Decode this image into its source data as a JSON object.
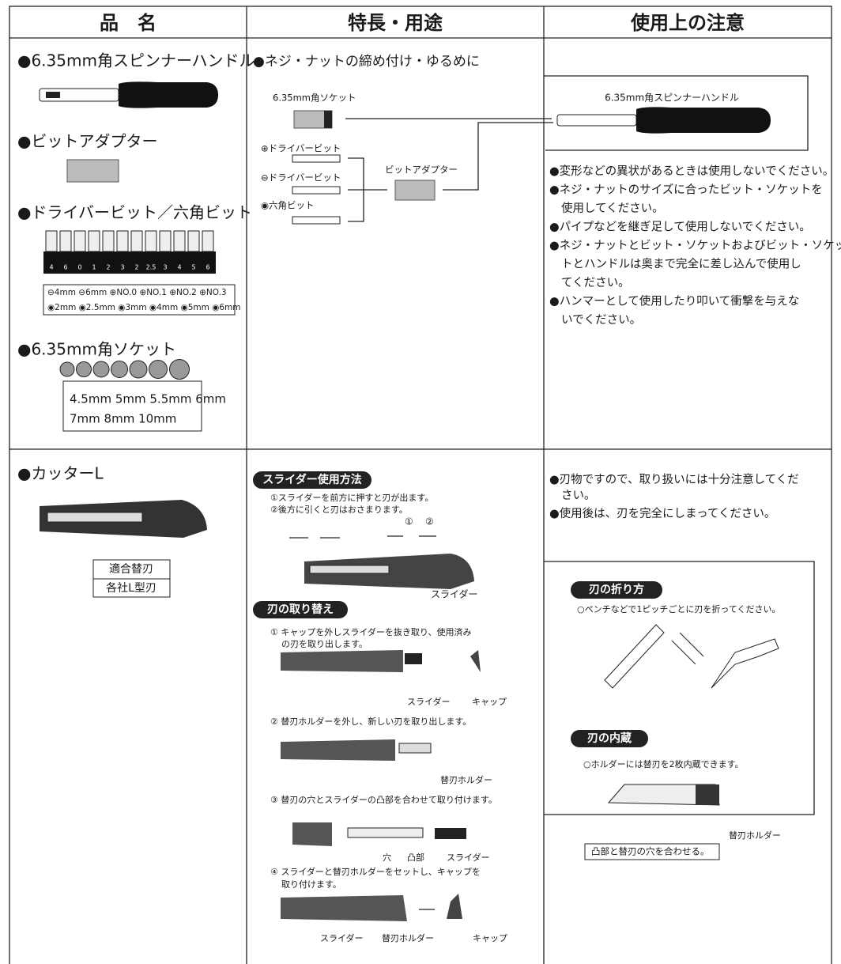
{
  "header": {
    "columns": [
      "品　名",
      "特長・用途",
      "使用上の注意"
    ]
  },
  "rows": [
    {
      "product": {
        "items": [
          {
            "name": "●6.35mm角スピンナーハンドル"
          },
          {
            "name": "●ビットアダプター"
          },
          {
            "name": "●ドライバービット／六角ビット",
            "bit_labels": [
              "4",
              "6",
              "0",
              "1",
              "2",
              "3",
              "2",
              "2.5",
              "3",
              "4",
              "5",
              "6"
            ],
            "sizes": [
              "⊖4mm ⊖6mm ⊕NO.0 ⊕NO.1 ⊕NO.2 ⊕NO.3",
              "◉2mm ◉2.5mm ◉3mm ◉4mm ◉5mm ◉6mm"
            ]
          },
          {
            "name": "●6.35mm角ソケット",
            "sizes": [
              "4.5mm 5mm 5.5mm 6mm",
              "7mm 8mm 10mm"
            ]
          }
        ]
      },
      "use": {
        "title": "●ネジ・ナットの締め付け・ゆるめに",
        "labels": [
          "6.35mm角ソケット",
          "⊕ドライバービット",
          "⊖ドライバービット",
          "◉六角ビット",
          "ビットアダプター"
        ]
      },
      "cautions": {
        "diagram_label": "6.35mm角スピンナーハンドル",
        "lines": [
          "●変形などの異状があるときは使用しないでください。",
          "●ネジ・ナットのサイズに合ったビット・ソケットを",
          "使用してください。",
          "●パイプなどを継ぎ足して使用しないでください。",
          "●ネジ・ナットとビット・ソケットおよびビット・ソケッ",
          "トとハンドルは奥まで完全に差し込んで使用し",
          "てください。",
          "●ハンマーとして使用したり叩いて衝撃を与えな",
          "いでください。"
        ]
      }
    },
    {
      "product": {
        "name": "●カッターL",
        "table": [
          "適合替刃",
          "各社L型刃"
        ]
      },
      "use": {
        "slider": {
          "title": "スライダー使用方法",
          "lines": [
            "①スライダーを前方に押すと刃が出ます。",
            "②後方に引くと刃はおさまります。"
          ],
          "callouts": [
            "①",
            "②",
            "スライダー"
          ]
        },
        "replace": {
          "title": "刃の取り替え",
          "steps": [
            {
              "lines": [
                "① キャップを外しスライダーを抜き取り、使用済み",
                "の刃を取り出します。"
              ],
              "callouts": [
                "スライダー",
                "キャップ"
              ]
            },
            {
              "lines": [
                "② 替刃ホルダーを外し、新しい刃を取り出します。"
              ],
              "callouts": [
                "替刃ホルダー"
              ]
            },
            {
              "lines": [
                "③ 替刃の穴とスライダーの凸部を合わせて取り付けます。"
              ],
              "callouts": [
                "穴",
                "凸部",
                "スライダー"
              ]
            },
            {
              "lines": [
                "④ スライダーと替刃ホルダーをセットし、キャップを",
                "取り付けます。"
              ],
              "callouts": [
                "スライダー",
                "替刃ホルダー",
                "キャップ"
              ]
            }
          ]
        }
      },
      "cautions": {
        "lines": [
          "●刃物ですので、取り扱いには十分注意してくだ",
          "さい。",
          "●使用後は、刃を完全にしまってください。"
        ],
        "break": {
          "title": "刃の折り方",
          "text": "○ペンチなどで1ピッチごとに刃を折ってください。"
        },
        "storage": {
          "title": "刃の内蔵",
          "text": "○ホルダーには替刃を2枚内蔵できます。",
          "callout": "替刃ホルダー",
          "note": "凸部と替刃の穴を合わせる。"
        }
      }
    }
  ]
}
